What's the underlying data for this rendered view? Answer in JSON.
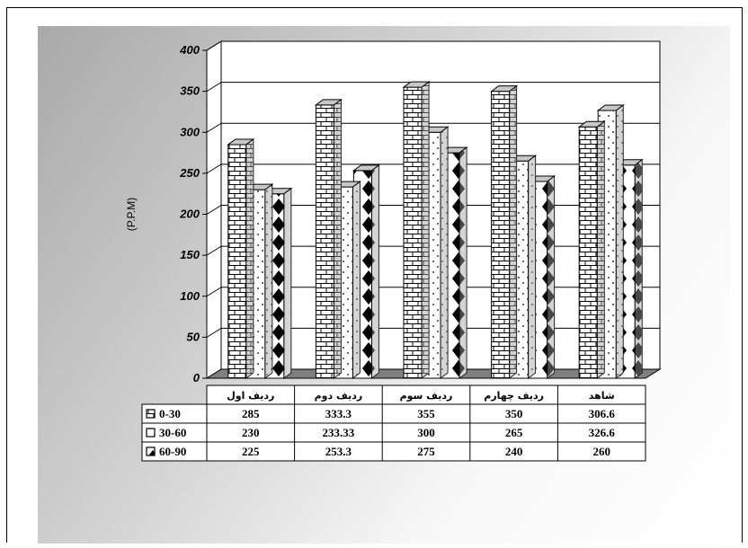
{
  "chart_data": {
    "type": "bar",
    "title": "",
    "xlabel": "",
    "ylabel": "(P.P.M)",
    "ylim": [
      0,
      400
    ],
    "yticks": [
      "0",
      "50",
      "100",
      "150",
      "200",
      "250",
      "300",
      "350",
      "400"
    ],
    "categories": [
      "ردیف اول",
      "ردیف دوم",
      "ردیف سوم",
      "ردیف چهارم",
      "شاهد"
    ],
    "series": [
      {
        "name": "0-30",
        "values": [
          285,
          333.3,
          355,
          350,
          306.6
        ],
        "labels": [
          "285",
          "333.3",
          "355",
          "350",
          "306.6"
        ],
        "pattern": "brick"
      },
      {
        "name": "30-60",
        "values": [
          230,
          233.33,
          300,
          265,
          326.6
        ],
        "labels": [
          "230",
          "233.33",
          "300",
          "265",
          "326.6"
        ],
        "pattern": "dots"
      },
      {
        "name": "60-90",
        "values": [
          225,
          253.3,
          275,
          240,
          260
        ],
        "labels": [
          "225",
          "253.3",
          "275",
          "240",
          "260"
        ],
        "pattern": "diamond"
      }
    ],
    "grid": true,
    "legend": "data-table",
    "colors": {
      "bar_side": "#a0a0a0",
      "bar_top": "#c8c8c8",
      "floor": "#7f7f7f",
      "wall": "#ffffff"
    }
  }
}
